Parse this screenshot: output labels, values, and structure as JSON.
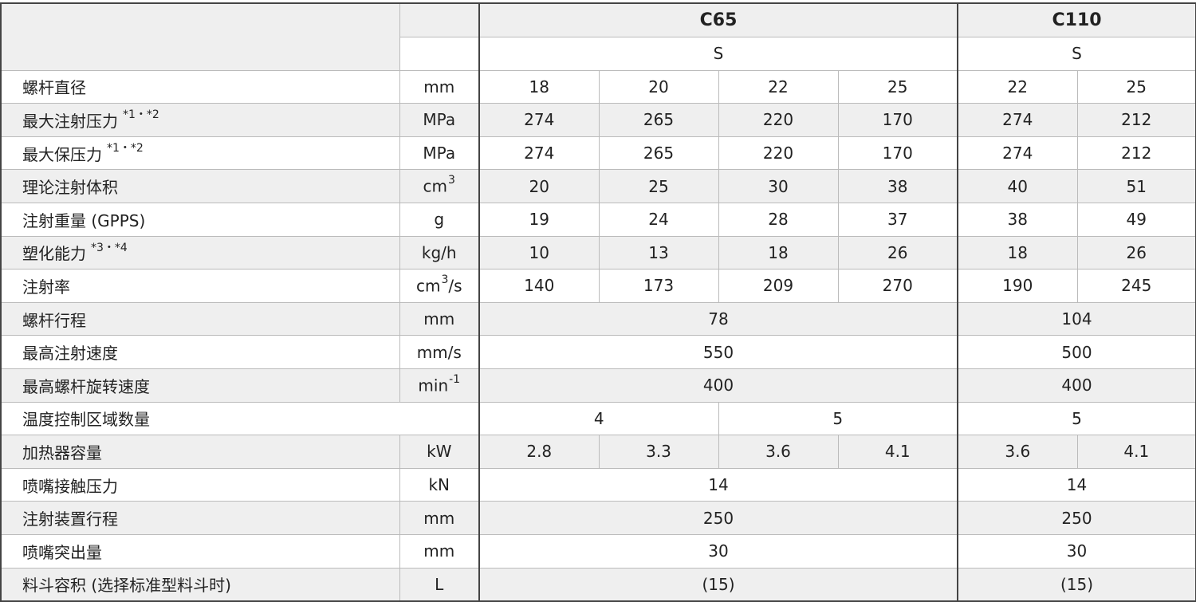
{
  "header": {
    "c65": "C65",
    "c65_sub": "S",
    "c110": "C110",
    "c110_sub": "S"
  },
  "rows": [
    {
      "label": [
        {
          "t": "螺杆直径"
        }
      ],
      "unit": [
        {
          "t": "mm"
        }
      ],
      "c65": [
        18,
        20,
        22,
        25
      ],
      "c110": [
        22,
        25
      ]
    },
    {
      "label": [
        {
          "t": "最大注射压力"
        },
        {
          "t": "*1・*2",
          "sup": true
        }
      ],
      "unit": [
        {
          "t": "MPa"
        }
      ],
      "c65": [
        274,
        265,
        220,
        170
      ],
      "c110": [
        274,
        212
      ]
    },
    {
      "label": [
        {
          "t": "最大保压力"
        },
        {
          "t": "*1・*2",
          "sup": true
        }
      ],
      "unit": [
        {
          "t": "MPa"
        }
      ],
      "c65": [
        274,
        265,
        220,
        170
      ],
      "c110": [
        274,
        212
      ]
    },
    {
      "label": [
        {
          "t": "理论注射体积"
        }
      ],
      "unit": [
        {
          "t": "cm"
        },
        {
          "t": "3",
          "sup": true
        }
      ],
      "c65": [
        20,
        25,
        30,
        38
      ],
      "c110": [
        40,
        51
      ]
    },
    {
      "label": [
        {
          "t": "注射重量 (GPPS)"
        }
      ],
      "unit": [
        {
          "t": "g"
        }
      ],
      "c65": [
        19,
        24,
        28,
        37
      ],
      "c110": [
        38,
        49
      ]
    },
    {
      "label": [
        {
          "t": "塑化能力"
        },
        {
          "t": "*3・*4",
          "sup": true
        }
      ],
      "unit": [
        {
          "t": "kg/h"
        }
      ],
      "c65": [
        10,
        13,
        18,
        26
      ],
      "c110": [
        18,
        26
      ]
    },
    {
      "label": [
        {
          "t": "注射率"
        }
      ],
      "unit": [
        {
          "t": "cm"
        },
        {
          "t": "3",
          "sup": true
        },
        {
          "t": "/s"
        }
      ],
      "c65": [
        140,
        173,
        209,
        270
      ],
      "c110": [
        190,
        245
      ]
    },
    {
      "label": [
        {
          "t": "螺杆行程"
        }
      ],
      "unit": [
        {
          "t": "mm"
        }
      ],
      "c65": [
        78
      ],
      "c110": [
        104
      ]
    },
    {
      "label": [
        {
          "t": "最高注射速度"
        }
      ],
      "unit": [
        {
          "t": "mm/s"
        }
      ],
      "c65": [
        550
      ],
      "c110": [
        500
      ]
    },
    {
      "label": [
        {
          "t": "最高螺杆旋转速度"
        }
      ],
      "unit": [
        {
          "t": "min"
        },
        {
          "t": "-1",
          "sup": true
        }
      ],
      "c65": [
        400
      ],
      "c110": [
        400
      ]
    },
    {
      "label": [
        {
          "t": "温度控制区域数量"
        }
      ],
      "c65": [
        4,
        5
      ],
      "c110": [
        5
      ]
    },
    {
      "label": [
        {
          "t": "加热器容量"
        }
      ],
      "unit": [
        {
          "t": "kW"
        }
      ],
      "c65": [
        2.8,
        3.3,
        3.6,
        4.1
      ],
      "c110": [
        3.6,
        4.1
      ]
    },
    {
      "label": [
        {
          "t": "喷嘴接触压力"
        }
      ],
      "unit": [
        {
          "t": "kN"
        }
      ],
      "c65": [
        14
      ],
      "c110": [
        14
      ]
    },
    {
      "label": [
        {
          "t": "注射装置行程"
        }
      ],
      "unit": [
        {
          "t": "mm"
        }
      ],
      "c65": [
        250
      ],
      "c110": [
        250
      ]
    },
    {
      "label": [
        {
          "t": "喷嘴突出量"
        }
      ],
      "unit": [
        {
          "t": "mm"
        }
      ],
      "c65": [
        30
      ],
      "c110": [
        30
      ]
    },
    {
      "label": [
        {
          "t": "料斗容积 (选择标准型料斗时)"
        }
      ],
      "unit": [
        {
          "t": "L"
        }
      ],
      "c65": [
        "(15)"
      ],
      "c110": [
        "(15)"
      ]
    }
  ]
}
